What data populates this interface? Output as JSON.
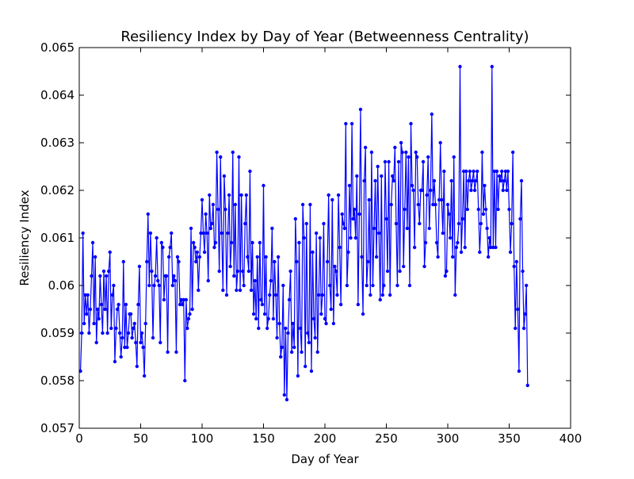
{
  "chart_data": {
    "type": "line",
    "title": "Resiliency Index by Day of Year (Betweenness Centrality)",
    "xlabel": "Day of Year",
    "ylabel": "Resiliency Index",
    "color": "#0000ff",
    "xlim": [
      0,
      400
    ],
    "xticks": [
      0,
      50,
      100,
      150,
      200,
      250,
      300,
      350,
      400
    ],
    "ylim": [
      0.057,
      0.065
    ],
    "yticks": [
      0.057,
      0.058,
      0.059,
      0.06,
      0.061,
      0.062,
      0.063,
      0.064,
      0.065
    ],
    "x": [
      1,
      2,
      3,
      4,
      5,
      6,
      7,
      8,
      9,
      10,
      11,
      12,
      13,
      14,
      15,
      16,
      17,
      18,
      19,
      20,
      21,
      22,
      23,
      24,
      25,
      26,
      27,
      28,
      29,
      30,
      31,
      32,
      33,
      34,
      35,
      36,
      37,
      38,
      39,
      40,
      41,
      42,
      43,
      44,
      45,
      46,
      47,
      48,
      49,
      50,
      51,
      52,
      53,
      54,
      55,
      56,
      57,
      58,
      59,
      60,
      61,
      62,
      63,
      64,
      65,
      66,
      67,
      68,
      69,
      70,
      71,
      72,
      73,
      74,
      75,
      76,
      77,
      78,
      79,
      80,
      81,
      82,
      83,
      84,
      85,
      86,
      87,
      88,
      89,
      90,
      91,
      92,
      93,
      94,
      95,
      96,
      97,
      98,
      99,
      100,
      101,
      102,
      103,
      104,
      105,
      106,
      107,
      108,
      109,
      110,
      111,
      112,
      113,
      114,
      115,
      116,
      117,
      118,
      119,
      120,
      121,
      122,
      123,
      124,
      125,
      126,
      127,
      128,
      129,
      130,
      131,
      132,
      133,
      134,
      135,
      136,
      137,
      138,
      139,
      140,
      141,
      142,
      143,
      144,
      145,
      146,
      147,
      148,
      149,
      150,
      151,
      152,
      153,
      154,
      155,
      156,
      157,
      158,
      159,
      160,
      161,
      162,
      163,
      164,
      165,
      166,
      167,
      168,
      169,
      170,
      171,
      172,
      173,
      174,
      175,
      176,
      177,
      178,
      179,
      180,
      181,
      182,
      183,
      184,
      185,
      186,
      187,
      188,
      189,
      190,
      191,
      192,
      193,
      194,
      195,
      196,
      197,
      198,
      199,
      200,
      201,
      202,
      203,
      204,
      205,
      206,
      207,
      208,
      209,
      210,
      211,
      212,
      213,
      214,
      215,
      216,
      217,
      218,
      219,
      220,
      221,
      222,
      223,
      224,
      225,
      226,
      227,
      228,
      229,
      230,
      231,
      232,
      233,
      234,
      235,
      236,
      237,
      238,
      239,
      240,
      241,
      242,
      243,
      244,
      245,
      246,
      247,
      248,
      249,
      250,
      251,
      252,
      253,
      254,
      255,
      256,
      257,
      258,
      259,
      260,
      261,
      262,
      263,
      264,
      265,
      266,
      267,
      268,
      269,
      270,
      271,
      272,
      273,
      274,
      275,
      276,
      277,
      278,
      279,
      280,
      281,
      282,
      283,
      284,
      285,
      286,
      287,
      288,
      289,
      290,
      291,
      292,
      293,
      294,
      295,
      296,
      297,
      298,
      299,
      300,
      301,
      302,
      303,
      304,
      305,
      306,
      307,
      308,
      309,
      310,
      311,
      312,
      313,
      314,
      315,
      316,
      317,
      318,
      319,
      320,
      321,
      322,
      323,
      324,
      325,
      326,
      327,
      328,
      329,
      330,
      331,
      332,
      333,
      334,
      335,
      336,
      337,
      338,
      339,
      340,
      341,
      342,
      343,
      344,
      345,
      346,
      347,
      348,
      349,
      350,
      351,
      352,
      353,
      354,
      355,
      356,
      357,
      358,
      359,
      360,
      361,
      362,
      363,
      364,
      365
    ],
    "values": [
      0.0582,
      0.059,
      0.0611,
      0.0592,
      0.0598,
      0.0594,
      0.0598,
      0.059,
      0.0595,
      0.0602,
      0.0609,
      0.0592,
      0.0606,
      0.0588,
      0.0595,
      0.0593,
      0.0602,
      0.0596,
      0.059,
      0.0603,
      0.0595,
      0.0602,
      0.059,
      0.0603,
      0.0607,
      0.0591,
      0.0598,
      0.06,
      0.0584,
      0.0591,
      0.0595,
      0.0596,
      0.059,
      0.0585,
      0.0589,
      0.0605,
      0.0587,
      0.0596,
      0.0587,
      0.059,
      0.0594,
      0.0594,
      0.0589,
      0.0591,
      0.0592,
      0.0588,
      0.0583,
      0.0596,
      0.0604,
      0.0588,
      0.059,
      0.0587,
      0.0581,
      0.0592,
      0.0605,
      0.0615,
      0.06,
      0.0611,
      0.0603,
      0.0589,
      0.06,
      0.0602,
      0.061,
      0.0601,
      0.06,
      0.0588,
      0.0609,
      0.0608,
      0.0597,
      0.0602,
      0.0602,
      0.0586,
      0.0606,
      0.0608,
      0.0611,
      0.06,
      0.0602,
      0.0601,
      0.0586,
      0.0606,
      0.0605,
      0.0596,
      0.0597,
      0.0596,
      0.0597,
      0.058,
      0.0597,
      0.0591,
      0.0593,
      0.0594,
      0.0612,
      0.0595,
      0.0609,
      0.0608,
      0.0605,
      0.0607,
      0.0599,
      0.0606,
      0.0611,
      0.0618,
      0.0611,
      0.0607,
      0.0615,
      0.0611,
      0.0601,
      0.0619,
      0.0612,
      0.0613,
      0.0617,
      0.0608,
      0.0609,
      0.0628,
      0.0616,
      0.0603,
      0.0627,
      0.0611,
      0.0599,
      0.0623,
      0.0616,
      0.0598,
      0.0611,
      0.0619,
      0.0604,
      0.0609,
      0.0628,
      0.0602,
      0.0617,
      0.0599,
      0.0603,
      0.0627,
      0.0599,
      0.0619,
      0.0603,
      0.06,
      0.0613,
      0.0619,
      0.0606,
      0.0603,
      0.0624,
      0.0599,
      0.0609,
      0.0594,
      0.0601,
      0.0593,
      0.0606,
      0.0591,
      0.0609,
      0.0597,
      0.0596,
      0.0621,
      0.0594,
      0.0606,
      0.0591,
      0.0593,
      0.0598,
      0.0601,
      0.0612,
      0.0593,
      0.0605,
      0.0598,
      0.0589,
      0.0606,
      0.0592,
      0.0585,
      0.0587,
      0.06,
      0.0577,
      0.0591,
      0.0576,
      0.059,
      0.0597,
      0.0603,
      0.0586,
      0.0592,
      0.0587,
      0.0614,
      0.0605,
      0.0581,
      0.0609,
      0.0591,
      0.0586,
      0.0617,
      0.061,
      0.0583,
      0.0613,
      0.059,
      0.0588,
      0.0617,
      0.0582,
      0.0607,
      0.0593,
      0.0589,
      0.0611,
      0.0586,
      0.0598,
      0.061,
      0.0594,
      0.0598,
      0.0613,
      0.0593,
      0.0592,
      0.0605,
      0.0619,
      0.06,
      0.0595,
      0.0618,
      0.0592,
      0.0604,
      0.0603,
      0.0598,
      0.0619,
      0.0608,
      0.0596,
      0.0615,
      0.0613,
      0.0612,
      0.0634,
      0.06,
      0.0607,
      0.0621,
      0.061,
      0.0634,
      0.0614,
      0.0616,
      0.061,
      0.0623,
      0.0596,
      0.0615,
      0.0637,
      0.0606,
      0.0594,
      0.0622,
      0.0629,
      0.06,
      0.0605,
      0.0618,
      0.0598,
      0.0628,
      0.06,
      0.0612,
      0.0622,
      0.0606,
      0.0625,
      0.0611,
      0.0597,
      0.0623,
      0.0598,
      0.06,
      0.0626,
      0.0614,
      0.0603,
      0.0626,
      0.0598,
      0.0617,
      0.0623,
      0.0622,
      0.0629,
      0.0613,
      0.06,
      0.0626,
      0.0603,
      0.063,
      0.0628,
      0.0604,
      0.0616,
      0.0628,
      0.0612,
      0.0627,
      0.06,
      0.0634,
      0.0621,
      0.062,
      0.0608,
      0.0628,
      0.0627,
      0.0617,
      0.0613,
      0.062,
      0.062,
      0.0626,
      0.0604,
      0.0609,
      0.0619,
      0.0627,
      0.0612,
      0.062,
      0.0636,
      0.0617,
      0.0622,
      0.0617,
      0.0609,
      0.0606,
      0.0618,
      0.063,
      0.0618,
      0.0611,
      0.0624,
      0.0602,
      0.0603,
      0.0617,
      0.0615,
      0.061,
      0.0622,
      0.0606,
      0.0627,
      0.0598,
      0.0608,
      0.0609,
      0.0613,
      0.0646,
      0.0607,
      0.0614,
      0.0624,
      0.0608,
      0.0624,
      0.0616,
      0.0622,
      0.0624,
      0.062,
      0.0622,
      0.0624,
      0.062,
      0.0622,
      0.0624,
      0.0616,
      0.0607,
      0.0613,
      0.0628,
      0.0615,
      0.0621,
      0.0616,
      0.0612,
      0.0606,
      0.061,
      0.0608,
      0.0646,
      0.0608,
      0.0624,
      0.0608,
      0.0624,
      0.0616,
      0.0623,
      0.0622,
      0.0624,
      0.062,
      0.0622,
      0.0624,
      0.062,
      0.0624,
      0.0616,
      0.0607,
      0.0613,
      0.0628,
      0.0604,
      0.0591,
      0.0605,
      0.0595,
      0.0582,
      0.0614,
      0.0622,
      0.0603,
      0.0591,
      0.0594,
      0.06,
      0.0579
    ]
  }
}
